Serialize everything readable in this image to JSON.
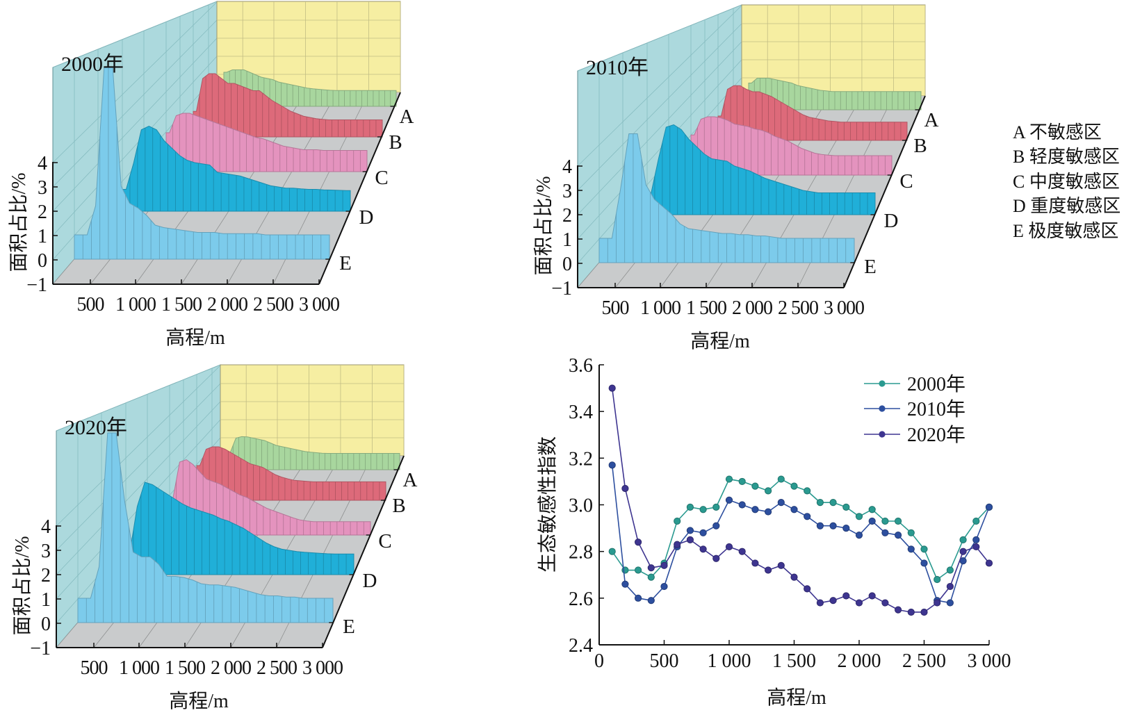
{
  "legend": {
    "items": [
      {
        "key": "A",
        "label": "A 不敏感区"
      },
      {
        "key": "B",
        "label": "B 轻度敏感区"
      },
      {
        "key": "C",
        "label": "C 中度敏感区"
      },
      {
        "key": "D",
        "label": "D 重度敏感区"
      },
      {
        "key": "E",
        "label": "E 极度敏感区"
      }
    ]
  },
  "colors": {
    "A": "#a8d69e",
    "B": "#dd6a7a",
    "C": "#e493be",
    "D": "#20afd8",
    "E": "#7ccbeb",
    "side_wall": "#acd9dd",
    "back_wall": "#f6eea2",
    "floor": "#c9cbcc"
  },
  "chart_data": [
    {
      "type": "area3d",
      "title": "2000年",
      "xlabel": "高程/m",
      "ylabel": "面积占比/%",
      "x_tick_labels": [
        "500",
        "1 000",
        "1 500",
        "2 000",
        "2 500",
        "3 000"
      ],
      "z_tick_labels": [
        "−1",
        "0",
        "1",
        "2",
        "3",
        "4"
      ],
      "zlim": [
        -1,
        4
      ],
      "row_labels": [
        "A",
        "B",
        "C",
        "D",
        "E"
      ],
      "x": [
        100,
        200,
        300,
        400,
        500,
        600,
        700,
        800,
        900,
        1000,
        1100,
        1200,
        1300,
        1400,
        1500,
        1600,
        1700,
        1800,
        1900,
        2000,
        2100,
        2200,
        2300,
        2400,
        2500,
        2600,
        2700,
        2800,
        2900,
        3000
      ],
      "series": [
        {
          "name": "A",
          "values": [
            1.4,
            1.5,
            1.5,
            1.5,
            1.4,
            1.3,
            1.2,
            1.15,
            1.1,
            1.0,
            0.95,
            0.9,
            0.85,
            0.8,
            0.75,
            0.72,
            0.7,
            0.68,
            0.66,
            0.65,
            0.65,
            0.65,
            0.65,
            0.65,
            0.65,
            0.65,
            0.65,
            0.65,
            0.65,
            0.65
          ]
        },
        {
          "name": "B",
          "values": [
            1.05,
            2.4,
            2.6,
            2.6,
            2.4,
            2.2,
            2.2,
            2.1,
            2.0,
            1.9,
            1.9,
            1.7,
            1.5,
            1.35,
            1.2,
            1.05,
            0.95,
            0.85,
            0.8,
            0.75,
            0.72,
            0.7,
            0.7,
            0.7,
            0.7,
            0.7,
            0.7,
            0.7,
            0.7,
            0.7
          ]
        },
        {
          "name": "C",
          "values": [
            1.6,
            2.3,
            2.4,
            2.4,
            2.3,
            2.2,
            2.1,
            2.0,
            1.9,
            1.8,
            1.7,
            1.6,
            1.5,
            1.4,
            1.35,
            1.25,
            1.15,
            1.05,
            1.0,
            0.95,
            0.9,
            0.9,
            0.9,
            0.87,
            0.87,
            0.87,
            0.87,
            0.87,
            0.87,
            0.87
          ]
        },
        {
          "name": "D",
          "values": [
            0.9,
            2.0,
            3.35,
            3.5,
            3.35,
            2.9,
            2.6,
            2.3,
            2.1,
            2.0,
            1.95,
            1.9,
            1.6,
            1.55,
            1.5,
            1.45,
            1.35,
            1.25,
            1.15,
            1.05,
            1.0,
            0.95,
            0.95,
            0.92,
            0.9,
            0.9,
            0.88,
            0.87,
            0.86,
            0.85
          ]
        },
        {
          "name": "E",
          "values": [
            1.0,
            1.0,
            2.2,
            7.9,
            7.9,
            3.0,
            2.3,
            2.1,
            1.8,
            1.4,
            1.3,
            1.25,
            1.2,
            1.15,
            1.1,
            1.1,
            1.1,
            1.05,
            1.05,
            1.05,
            1.05,
            1.05,
            1.0,
            1.0,
            1.0,
            1.0,
            1.0,
            1.0,
            1.0,
            1.0
          ]
        }
      ]
    },
    {
      "type": "area3d",
      "title": "2010年",
      "xlabel": "高程/m",
      "ylabel": "面积占比/%",
      "x_tick_labels": [
        "500",
        "1 000",
        "1 500",
        "2 000",
        "2 500",
        "3 000"
      ],
      "z_tick_labels": [
        "−1",
        "0",
        "1",
        "2",
        "3",
        "4"
      ],
      "zlim": [
        -1,
        4
      ],
      "row_labels": [
        "A",
        "B",
        "C",
        "D",
        "E"
      ],
      "x": [
        100,
        200,
        300,
        400,
        500,
        600,
        700,
        800,
        900,
        1000,
        1100,
        1200,
        1300,
        1400,
        1500,
        1600,
        1700,
        1800,
        1900,
        2000,
        2100,
        2200,
        2300,
        2400,
        2500,
        2600,
        2700,
        2800,
        2900,
        3000
      ],
      "series": [
        {
          "name": "A",
          "values": [
            1.1,
            1.3,
            1.3,
            1.3,
            1.25,
            1.2,
            1.15,
            1.1,
            1.0,
            0.95,
            0.9,
            0.85,
            0.8,
            0.78,
            0.75,
            0.75,
            0.75,
            0.75,
            0.75,
            0.75,
            0.75,
            0.75,
            0.75,
            0.75,
            0.75,
            0.75,
            0.75,
            0.75,
            0.75,
            0.75
          ]
        },
        {
          "name": "B",
          "values": [
            1.0,
            2.1,
            2.25,
            2.25,
            2.1,
            2.0,
            2.0,
            1.9,
            1.8,
            1.65,
            1.5,
            1.35,
            1.2,
            1.05,
            0.95,
            0.9,
            0.85,
            0.8,
            0.78,
            0.75,
            0.75,
            0.75,
            0.75,
            0.75,
            0.75,
            0.75,
            0.75,
            0.75,
            0.75,
            0.75
          ]
        },
        {
          "name": "C",
          "values": [
            1.65,
            2.3,
            2.4,
            2.4,
            2.35,
            2.25,
            2.1,
            2.05,
            2.0,
            1.9,
            1.85,
            1.75,
            1.6,
            1.5,
            1.4,
            1.25,
            1.1,
            1.0,
            0.9,
            0.85,
            0.82,
            0.8,
            0.8,
            0.8,
            0.8,
            0.8,
            0.8,
            0.8,
            0.8,
            0.8
          ]
        },
        {
          "name": "D",
          "values": [
            0.85,
            2.3,
            3.6,
            3.7,
            3.5,
            3.1,
            2.8,
            2.5,
            2.3,
            2.25,
            2.2,
            2.0,
            1.9,
            1.8,
            1.65,
            1.5,
            1.4,
            1.3,
            1.2,
            1.1,
            1.0,
            0.95,
            0.9,
            0.9,
            0.9,
            0.9,
            0.9,
            0.9,
            0.9,
            0.9
          ]
        },
        {
          "name": "E",
          "values": [
            1.0,
            1.0,
            3.0,
            5.3,
            5.3,
            3.2,
            2.6,
            2.3,
            2.0,
            1.6,
            1.4,
            1.35,
            1.3,
            1.25,
            1.2,
            1.2,
            1.15,
            1.15,
            1.1,
            1.1,
            1.05,
            1.0,
            1.0,
            1.0,
            1.0,
            1.0,
            1.0,
            1.0,
            1.0,
            1.0
          ]
        }
      ]
    },
    {
      "type": "area3d",
      "title": "2020年",
      "xlabel": "高程/m",
      "ylabel": "面积占比/%",
      "x_tick_labels": [
        "500",
        "1 000",
        "1 500",
        "2 000",
        "2 500",
        "3 000"
      ],
      "z_tick_labels": [
        "−1",
        "0",
        "1",
        "2",
        "3",
        "4"
      ],
      "zlim": [
        -1,
        4
      ],
      "row_labels": [
        "A",
        "B",
        "C",
        "D",
        "E"
      ],
      "x": [
        100,
        200,
        300,
        400,
        500,
        600,
        700,
        800,
        900,
        1000,
        1100,
        1200,
        1300,
        1400,
        1500,
        1600,
        1700,
        1800,
        1900,
        2000,
        2100,
        2200,
        2300,
        2400,
        2500,
        2600,
        2700,
        2800,
        2900,
        3000
      ],
      "series": [
        {
          "name": "A",
          "values": [
            0.7,
            1.3,
            1.36,
            1.35,
            1.3,
            1.25,
            1.2,
            1.1,
            1.0,
            0.95,
            0.9,
            0.85,
            0.8,
            0.75,
            0.72,
            0.7,
            0.68,
            0.67,
            0.67,
            0.67,
            0.67,
            0.67,
            0.67,
            0.67,
            0.67,
            0.67,
            0.67,
            0.67,
            0.67,
            0.67
          ]
        },
        {
          "name": "B",
          "values": [
            1.43,
            2.1,
            2.2,
            2.2,
            2.1,
            1.95,
            1.8,
            1.65,
            1.5,
            1.43,
            1.35,
            1.2,
            1.05,
            0.95,
            0.88,
            0.82,
            0.8,
            0.78,
            0.76,
            0.76,
            0.76,
            0.76,
            0.76,
            0.76,
            0.76,
            0.76,
            0.76,
            0.76,
            0.76,
            0.76
          ]
        },
        {
          "name": "C",
          "values": [
            1.5,
            3.0,
            3.1,
            2.9,
            2.6,
            2.3,
            2.2,
            2.1,
            1.95,
            1.8,
            1.65,
            1.55,
            1.4,
            1.25,
            1.1,
            1.0,
            0.9,
            0.8,
            0.7,
            0.62,
            0.58,
            0.55,
            0.55,
            0.55,
            0.55,
            0.55,
            0.55,
            0.55,
            0.55,
            0.55
          ]
        },
        {
          "name": "D",
          "values": [
            0.85,
            2.8,
            3.8,
            3.7,
            3.5,
            3.3,
            3.1,
            2.9,
            2.75,
            2.65,
            2.55,
            2.45,
            2.3,
            2.2,
            2.05,
            1.9,
            1.7,
            1.5,
            1.3,
            1.15,
            1.05,
            1.0,
            0.95,
            0.92,
            0.9,
            0.88,
            0.86,
            0.85,
            0.85,
            0.85
          ]
        },
        {
          "name": "E",
          "values": [
            1.0,
            1.0,
            2.3,
            7.8,
            7.8,
            5.0,
            2.9,
            2.7,
            2.7,
            2.4,
            1.9,
            1.9,
            1.85,
            1.75,
            1.6,
            1.55,
            1.55,
            1.5,
            1.45,
            1.35,
            1.25,
            1.15,
            1.1,
            1.1,
            1.05,
            1.05,
            1.0,
            1.0,
            1.0,
            1.0
          ]
        }
      ]
    },
    {
      "type": "line",
      "xlabel": "高程/m",
      "ylabel": "生态敏感性指数",
      "xlim": [
        0,
        3000
      ],
      "ylim": [
        2.4,
        3.6
      ],
      "x_ticks": [
        0,
        500,
        1000,
        1500,
        2000,
        2500,
        3000
      ],
      "x_tick_labels": [
        "0",
        "500",
        "1 000",
        "1 500",
        "2 000",
        "2 500",
        "3 000"
      ],
      "y_ticks": [
        2.4,
        2.6,
        2.8,
        3.0,
        3.2,
        3.4,
        3.6
      ],
      "y_tick_labels": [
        "2.4",
        "2.6",
        "2.8",
        "3.0",
        "3.2",
        "3.4",
        "3.6"
      ],
      "legend_position": "top-right",
      "grid": false,
      "x": [
        100,
        200,
        300,
        400,
        500,
        600,
        700,
        800,
        900,
        1000,
        1100,
        1200,
        1300,
        1400,
        1500,
        1600,
        1700,
        1800,
        1900,
        2000,
        2100,
        2200,
        2300,
        2400,
        2500,
        2600,
        2700,
        2800,
        2900,
        3000
      ],
      "series": [
        {
          "name": "2000年",
          "color": "#2a9a90",
          "values": [
            2.8,
            2.72,
            2.72,
            2.69,
            2.75,
            2.93,
            2.99,
            2.98,
            2.99,
            3.11,
            3.1,
            3.08,
            3.06,
            3.11,
            3.08,
            3.06,
            3.01,
            3.01,
            2.99,
            2.95,
            2.98,
            2.93,
            2.93,
            2.88,
            2.81,
            2.68,
            2.72,
            2.85,
            2.93,
            2.99
          ]
        },
        {
          "name": "2010年",
          "color": "#2d4f9f",
          "values": [
            3.17,
            2.66,
            2.6,
            2.59,
            2.65,
            2.82,
            2.89,
            2.88,
            2.91,
            3.02,
            3.0,
            2.98,
            2.97,
            3.01,
            2.98,
            2.95,
            2.91,
            2.91,
            2.9,
            2.87,
            2.93,
            2.88,
            2.87,
            2.81,
            2.75,
            2.59,
            2.58,
            2.76,
            2.85,
            2.99
          ]
        },
        {
          "name": "2020年",
          "color": "#3e3590",
          "values": [
            3.5,
            3.07,
            2.84,
            2.73,
            2.74,
            2.83,
            2.85,
            2.81,
            2.77,
            2.82,
            2.8,
            2.75,
            2.72,
            2.74,
            2.69,
            2.64,
            2.58,
            2.59,
            2.61,
            2.58,
            2.61,
            2.58,
            2.55,
            2.54,
            2.54,
            2.58,
            2.65,
            2.8,
            2.82,
            2.75
          ]
        }
      ]
    }
  ]
}
